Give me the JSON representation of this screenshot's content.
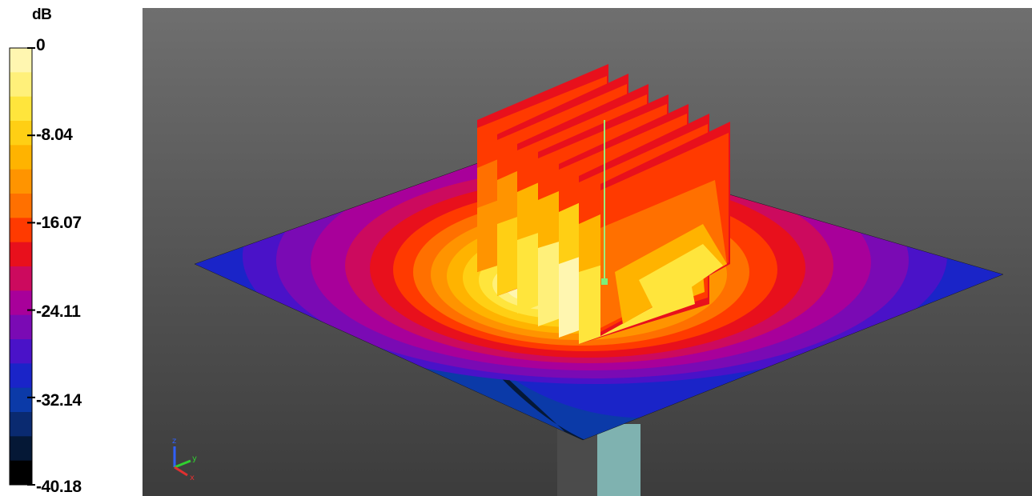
{
  "legend": {
    "unit": "dB",
    "ticks": [
      "0",
      "-8.04",
      "-16.07",
      "-24.11",
      "-32.14",
      "-40.18"
    ],
    "colors": [
      "#fff6b0",
      "#fff07a",
      "#ffe53c",
      "#ffcf14",
      "#ffb300",
      "#ff9400",
      "#ff7000",
      "#ff3a00",
      "#e8101c",
      "#cc0a5e",
      "#a8009a",
      "#7a0ab4",
      "#4a12c8",
      "#1a24c8",
      "#0b3aa8",
      "#0a2a70",
      "#051836",
      "#000000"
    ]
  },
  "viewport": {
    "background": "#606060",
    "axes": {
      "x": "x",
      "y": "y",
      "z": "z"
    }
  }
}
